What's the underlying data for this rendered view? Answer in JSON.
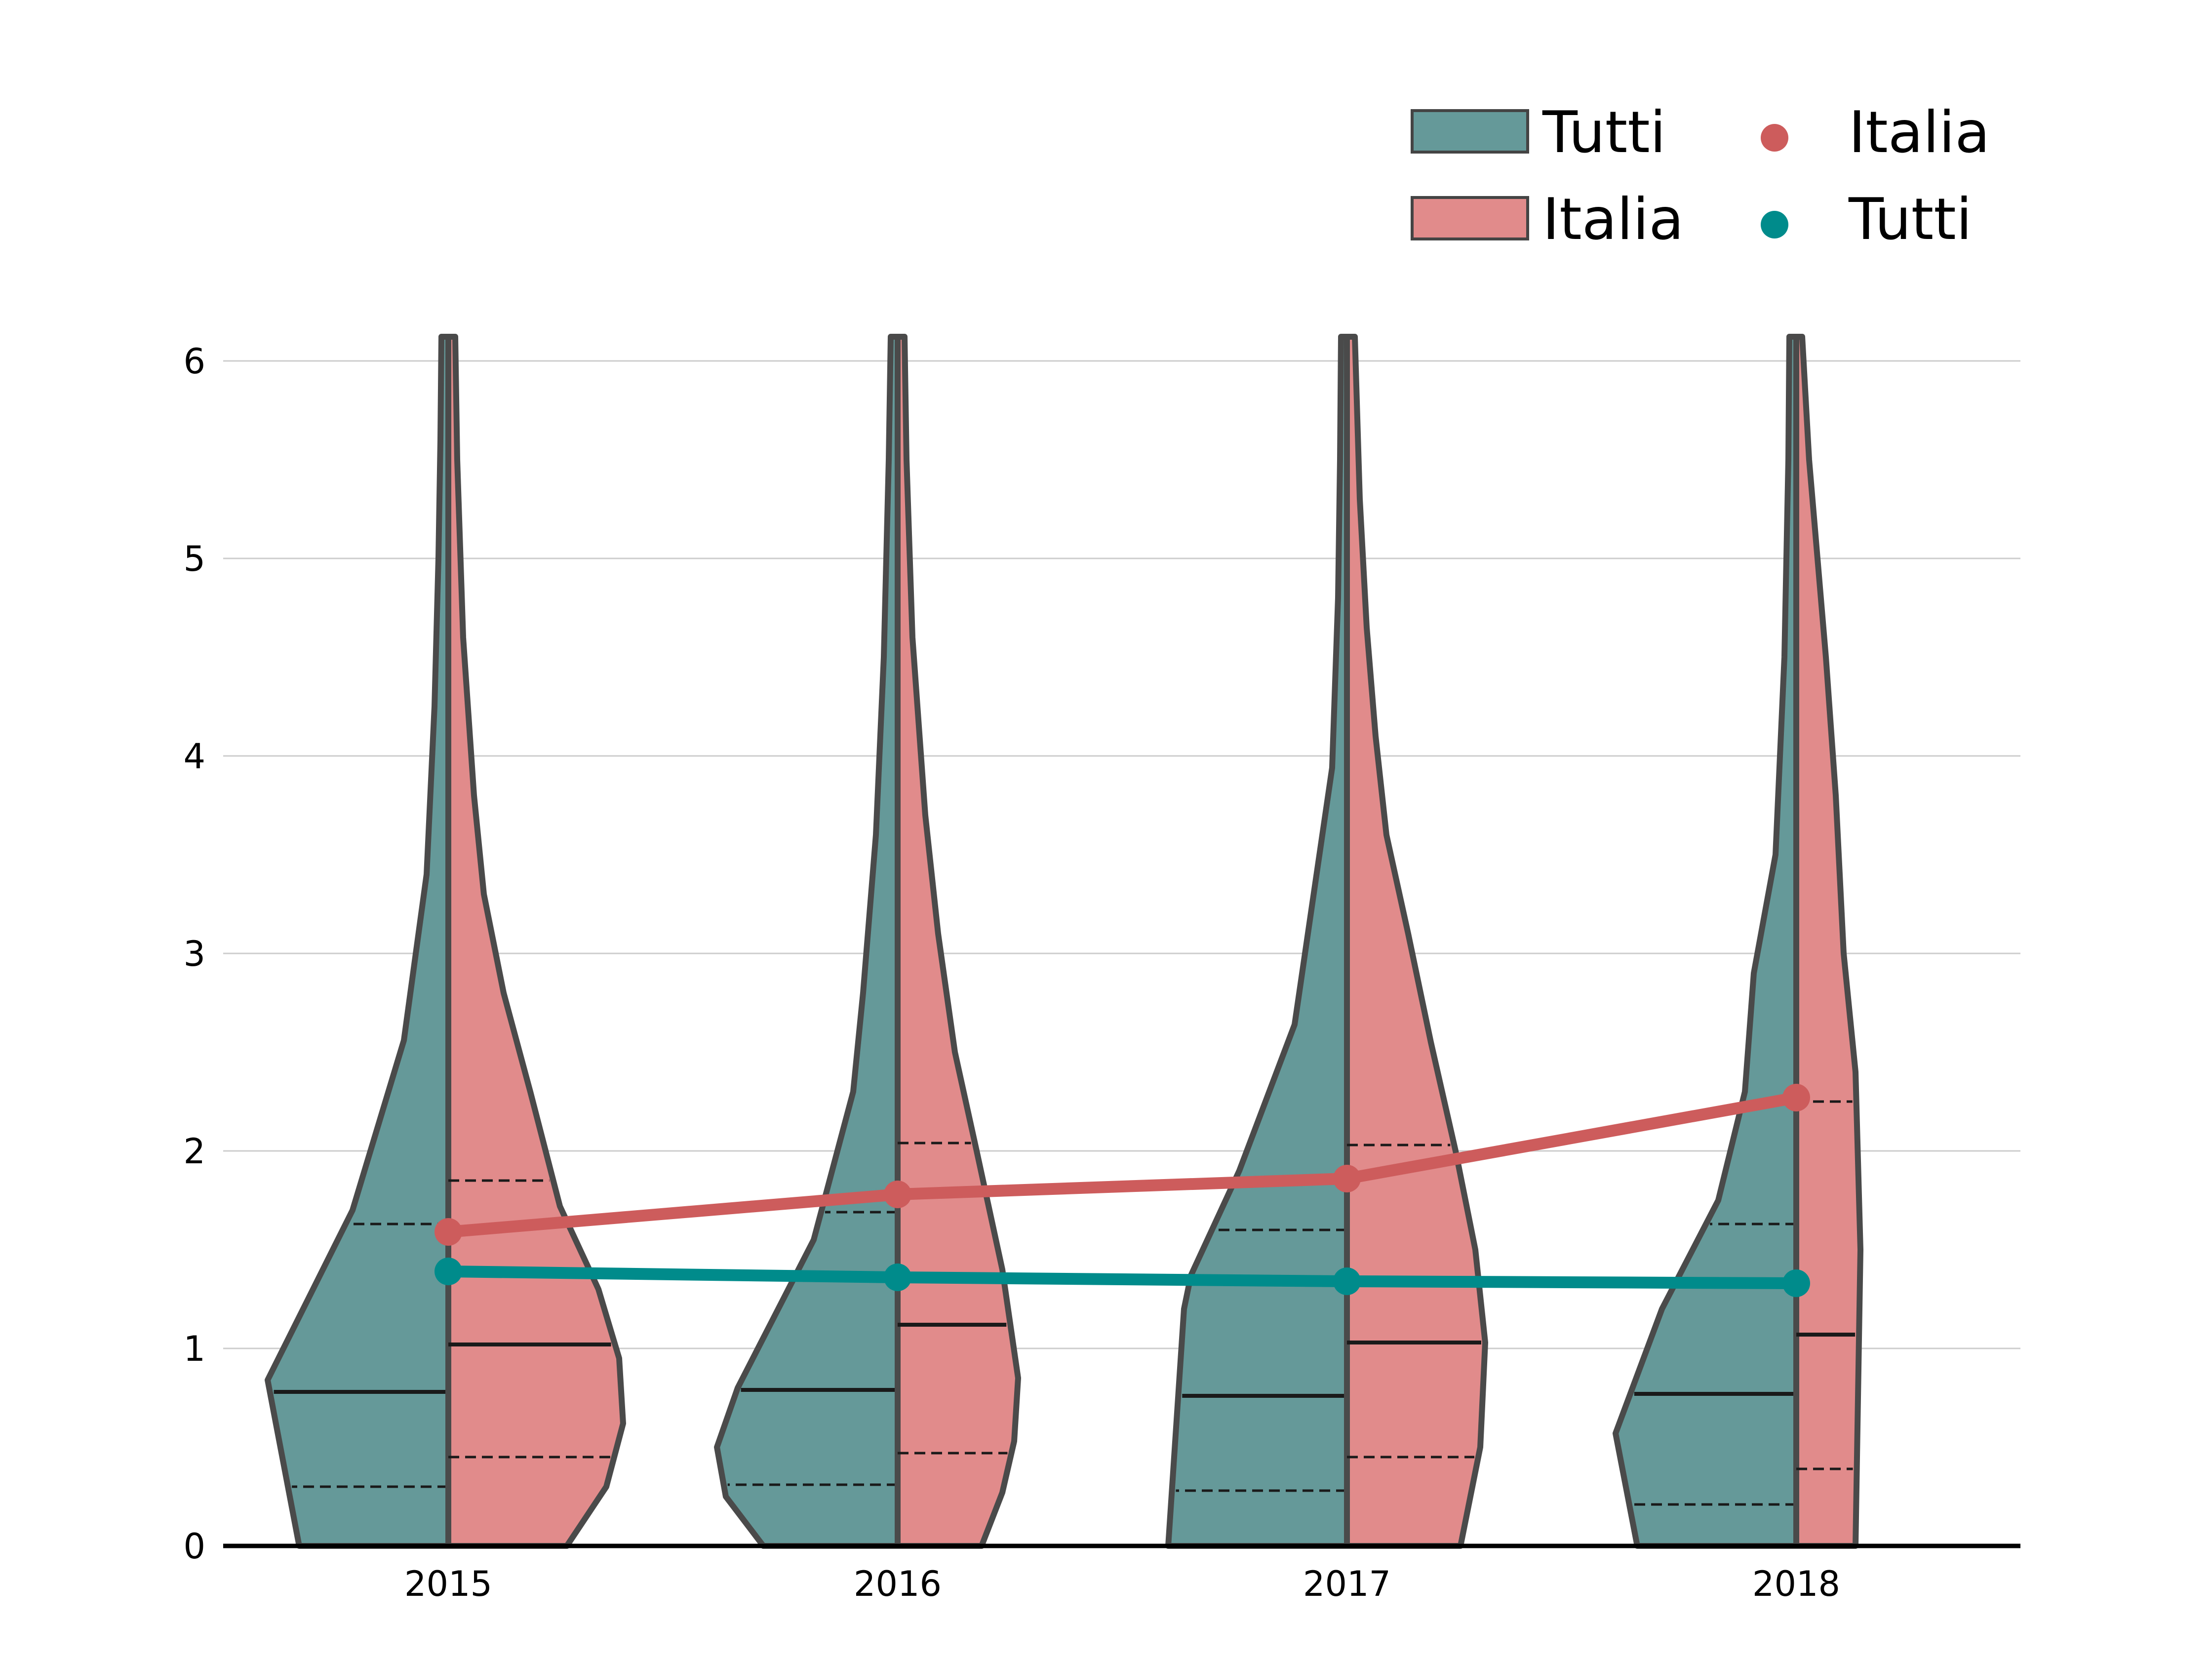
{
  "chart_data": {
    "type": "violin",
    "categories": [
      "2015",
      "2016",
      "2017",
      "2018"
    ],
    "ylim": [
      0,
      6.2
    ],
    "yticks": [
      0,
      1,
      2,
      3,
      4,
      5,
      6
    ],
    "grid": "horizontal",
    "legend_placement": "top-right",
    "violins": [
      {
        "name": "Tutti",
        "side": "left",
        "color": "#659999",
        "stats": [
          {
            "category": "2015",
            "q1": 0.3,
            "median": 0.78,
            "q3": 1.63
          },
          {
            "category": "2016",
            "q1": 0.31,
            "median": 0.79,
            "q3": 1.69
          },
          {
            "category": "2017",
            "q1": 0.28,
            "median": 0.76,
            "q3": 1.6
          },
          {
            "category": "2018",
            "q1": 0.21,
            "median": 0.77,
            "q3": 1.63
          }
        ]
      },
      {
        "name": "Italia",
        "side": "right",
        "color": "#e18b8b",
        "stats": [
          {
            "category": "2015",
            "q1": 0.45,
            "median": 1.02,
            "q3": 1.85
          },
          {
            "category": "2016",
            "q1": 0.47,
            "median": 1.12,
            "q3": 2.04
          },
          {
            "category": "2017",
            "q1": 0.45,
            "median": 1.03,
            "q3": 2.03
          },
          {
            "category": "2018",
            "q1": 0.39,
            "median": 1.07,
            "q3": 2.25
          }
        ]
      }
    ],
    "series": [
      {
        "name": "Italia",
        "type": "line",
        "color": "#cd5c5c",
        "values": [
          1.59,
          1.78,
          1.86,
          2.27
        ]
      },
      {
        "name": "Tutti",
        "type": "line",
        "color": "#008b8b",
        "values": [
          1.39,
          1.36,
          1.34,
          1.33
        ]
      }
    ],
    "legend": {
      "patches": [
        {
          "label": "Tutti",
          "color": "#659999"
        },
        {
          "label": "Italia",
          "color": "#e18b8b"
        }
      ],
      "markers": [
        {
          "label": "Italia",
          "color": "#cd5c5c"
        },
        {
          "label": "Tutti",
          "color": "#008b8b"
        }
      ]
    }
  }
}
